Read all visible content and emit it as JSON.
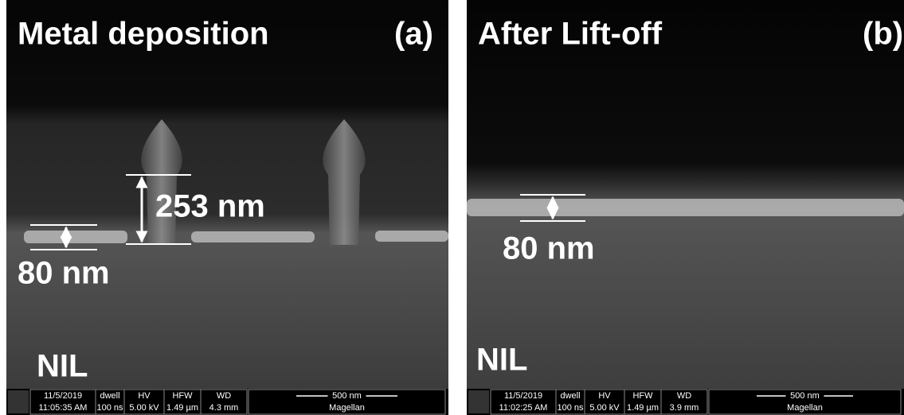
{
  "panels": [
    {
      "title": "Metal deposition",
      "label": "(a)",
      "dimensions": [
        "253 nm",
        "80 nm"
      ],
      "substrate": "NIL",
      "databar": {
        "date": "11/5/2019",
        "time": "11:05:35 AM",
        "dwell_label": "dwell",
        "dwell": "100 ns",
        "hv_label": "HV",
        "hv": "5.00 kV",
        "hfw_label": "HFW",
        "hfw": "1.49 µm",
        "wd_label": "WD",
        "wd": "4.3 mm",
        "scale": "500 nm",
        "instrument": "Magellan"
      }
    },
    {
      "title": "After Lift-off",
      "label": "(b)",
      "dimensions": [
        "80 nm"
      ],
      "substrate": "NIL",
      "databar": {
        "date": "11/5/2019",
        "time": "11:02:25 AM",
        "dwell_label": "dwell",
        "dwell": "100 ns",
        "hv_label": "HV",
        "hv": "5.00 kV",
        "hfw_label": "HFW",
        "hfw": "1.49 µm",
        "wd_label": "WD",
        "wd": "3.9 mm",
        "scale": "500 nm",
        "instrument": "Magellan"
      }
    }
  ]
}
